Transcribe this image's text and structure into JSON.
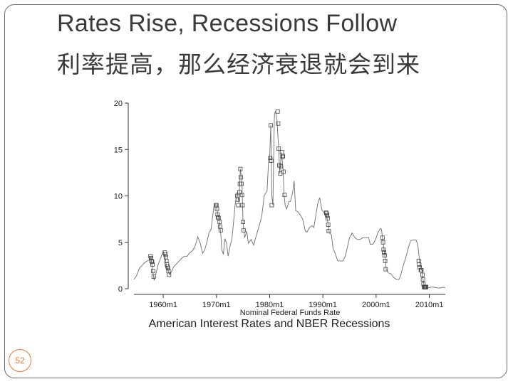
{
  "slide": {
    "title_en": "Rates Rise, Recessions Follow",
    "title_zh": "利率提高，那么经济衰退就会到来",
    "page_number": "52"
  },
  "colors": {
    "border": "#6b6b6b",
    "line": "#6e6e6e",
    "marker": "#444444",
    "badge": "#e07a3a"
  },
  "chart_data": {
    "type": "line",
    "title": "American Interest Rates and NBER Recessions",
    "xlabel": "Nominal Federal Funds Rate",
    "ylabel": "",
    "xlim": [
      1954.5,
      2013.0
    ],
    "ylim": [
      0,
      20
    ],
    "yticks": [
      0,
      5,
      10,
      15,
      20
    ],
    "xticks": [
      {
        "value": 1960,
        "label": "1960m1"
      },
      {
        "value": 1970,
        "label": "1970m1"
      },
      {
        "value": 1980,
        "label": "1980m1"
      },
      {
        "value": 1990,
        "label": "1990m1"
      },
      {
        "value": 2000,
        "label": "2000m1"
      },
      {
        "value": 2010,
        "label": "2010m1"
      }
    ],
    "grid": false,
    "series": [
      {
        "values": [
          [
            1954.5,
            1.0
          ],
          [
            1955.0,
            1.4
          ],
          [
            1955.5,
            2.2
          ],
          [
            1956.0,
            2.5
          ],
          [
            1956.5,
            2.8
          ],
          [
            1957.0,
            3.0
          ],
          [
            1957.4,
            3.1
          ],
          [
            1957.7,
            3.4
          ],
          [
            1958.0,
            2.0
          ],
          [
            1958.3,
            0.9
          ],
          [
            1958.7,
            1.8
          ],
          [
            1959.0,
            2.5
          ],
          [
            1959.5,
            3.3
          ],
          [
            1960.0,
            4.0
          ],
          [
            1960.3,
            3.6
          ],
          [
            1960.6,
            2.5
          ],
          [
            1960.9,
            2.0
          ],
          [
            1961.2,
            1.5
          ],
          [
            1961.6,
            1.9
          ],
          [
            1962.0,
            2.4
          ],
          [
            1962.5,
            2.7
          ],
          [
            1963.0,
            3.0
          ],
          [
            1963.5,
            3.3
          ],
          [
            1964.0,
            3.5
          ],
          [
            1964.5,
            3.5
          ],
          [
            1965.0,
            3.9
          ],
          [
            1965.5,
            4.1
          ],
          [
            1966.0,
            4.6
          ],
          [
            1966.5,
            5.6
          ],
          [
            1967.0,
            4.8
          ],
          [
            1967.4,
            3.8
          ],
          [
            1967.8,
            4.2
          ],
          [
            1968.2,
            5.0
          ],
          [
            1968.6,
            6.0
          ],
          [
            1969.0,
            6.4
          ],
          [
            1969.5,
            8.8
          ],
          [
            1969.9,
            9.1
          ],
          [
            1970.2,
            8.2
          ],
          [
            1970.5,
            7.4
          ],
          [
            1970.8,
            6.0
          ],
          [
            1971.0,
            4.2
          ],
          [
            1971.3,
            3.7
          ],
          [
            1971.6,
            5.4
          ],
          [
            1971.9,
            4.9
          ],
          [
            1972.2,
            3.5
          ],
          [
            1972.6,
            4.7
          ],
          [
            1972.9,
            5.3
          ],
          [
            1973.2,
            7.1
          ],
          [
            1973.5,
            9.0
          ],
          [
            1973.9,
            10.4
          ],
          [
            1974.2,
            9.3
          ],
          [
            1974.5,
            12.9
          ],
          [
            1974.8,
            11.5
          ],
          [
            1975.0,
            7.1
          ],
          [
            1975.3,
            5.5
          ],
          [
            1975.7,
            6.2
          ],
          [
            1976.0,
            4.9
          ],
          [
            1976.5,
            5.3
          ],
          [
            1977.0,
            4.7
          ],
          [
            1977.5,
            5.8
          ],
          [
            1978.0,
            6.7
          ],
          [
            1978.5,
            7.8
          ],
          [
            1979.0,
            10.1
          ],
          [
            1979.5,
            10.5
          ],
          [
            1979.8,
            13.8
          ],
          [
            1980.0,
            14.1
          ],
          [
            1980.2,
            17.6
          ],
          [
            1980.4,
            10.0
          ],
          [
            1980.6,
            9.0
          ],
          [
            1980.8,
            15.9
          ],
          [
            1980.9,
            18.9
          ],
          [
            1981.1,
            19.1
          ],
          [
            1981.4,
            18.0
          ],
          [
            1981.7,
            15.0
          ],
          [
            1981.9,
            12.4
          ],
          [
            1982.2,
            14.7
          ],
          [
            1982.5,
            13.0
          ],
          [
            1982.7,
            10.1
          ],
          [
            1982.9,
            9.0
          ],
          [
            1983.2,
            8.6
          ],
          [
            1983.6,
            9.4
          ],
          [
            1983.9,
            9.4
          ],
          [
            1984.3,
            10.3
          ],
          [
            1984.6,
            11.6
          ],
          [
            1984.9,
            8.4
          ],
          [
            1985.3,
            8.3
          ],
          [
            1985.8,
            7.9
          ],
          [
            1986.2,
            7.5
          ],
          [
            1986.7,
            6.2
          ],
          [
            1987.0,
            6.1
          ],
          [
            1987.5,
            6.6
          ],
          [
            1987.9,
            6.8
          ],
          [
            1988.3,
            6.6
          ],
          [
            1988.7,
            8.0
          ],
          [
            1989.0,
            9.1
          ],
          [
            1989.4,
            9.8
          ],
          [
            1989.8,
            8.5
          ],
          [
            1990.2,
            8.2
          ],
          [
            1990.6,
            8.0
          ],
          [
            1990.9,
            7.3
          ],
          [
            1991.2,
            6.0
          ],
          [
            1991.6,
            5.8
          ],
          [
            1991.9,
            4.4
          ],
          [
            1992.3,
            3.8
          ],
          [
            1992.8,
            3.0
          ],
          [
            1993.3,
            3.0
          ],
          [
            1993.8,
            3.0
          ],
          [
            1994.2,
            3.5
          ],
          [
            1994.6,
            4.5
          ],
          [
            1995.0,
            5.5
          ],
          [
            1995.5,
            6.0
          ],
          [
            1996.0,
            5.5
          ],
          [
            1996.5,
            5.3
          ],
          [
            1997.0,
            5.3
          ],
          [
            1997.5,
            5.5
          ],
          [
            1998.0,
            5.5
          ],
          [
            1998.6,
            5.5
          ],
          [
            1998.9,
            4.8
          ],
          [
            1999.4,
            4.8
          ],
          [
            1999.9,
            5.3
          ],
          [
            2000.3,
            6.0
          ],
          [
            2000.8,
            6.5
          ],
          [
            2001.0,
            6.4
          ],
          [
            2001.3,
            5.0
          ],
          [
            2001.6,
            3.8
          ],
          [
            2001.9,
            2.1
          ],
          [
            2002.3,
            1.7
          ],
          [
            2002.8,
            1.6
          ],
          [
            2003.3,
            1.2
          ],
          [
            2003.8,
            1.0
          ],
          [
            2004.3,
            1.0
          ],
          [
            2004.6,
            1.4
          ],
          [
            2005.0,
            2.3
          ],
          [
            2005.5,
            3.2
          ],
          [
            2006.0,
            4.3
          ],
          [
            2006.5,
            5.2
          ],
          [
            2007.0,
            5.25
          ],
          [
            2007.5,
            5.25
          ],
          [
            2007.8,
            4.8
          ],
          [
            2008.0,
            3.9
          ],
          [
            2008.3,
            2.3
          ],
          [
            2008.6,
            2.0
          ],
          [
            2008.9,
            0.6
          ],
          [
            2009.1,
            0.15
          ],
          [
            2009.5,
            0.16
          ],
          [
            2010.0,
            0.12
          ],
          [
            2010.5,
            0.18
          ],
          [
            2011.0,
            0.15
          ],
          [
            2011.5,
            0.09
          ],
          [
            2012.0,
            0.08
          ],
          [
            2012.5,
            0.15
          ],
          [
            2013.0,
            0.12
          ]
        ]
      }
    ],
    "recession_points": [
      [
        1957.6,
        3.5
      ],
      [
        1957.7,
        3.3
      ],
      [
        1957.8,
        3.0
      ],
      [
        1957.9,
        2.9
      ],
      [
        1958.0,
        2.6
      ],
      [
        1958.1,
        1.9
      ],
      [
        1958.2,
        1.3
      ],
      [
        1960.3,
        3.9
      ],
      [
        1960.4,
        3.7
      ],
      [
        1960.5,
        3.4
      ],
      [
        1960.6,
        3.0
      ],
      [
        1960.7,
        2.6
      ],
      [
        1960.8,
        2.4
      ],
      [
        1960.9,
        2.2
      ],
      [
        1961.0,
        1.9
      ],
      [
        1961.1,
        1.5
      ],
      [
        1969.9,
        9.0
      ],
      [
        1970.0,
        9.0
      ],
      [
        1970.1,
        8.6
      ],
      [
        1970.2,
        8.0
      ],
      [
        1970.3,
        7.7
      ],
      [
        1970.4,
        7.6
      ],
      [
        1970.6,
        7.2
      ],
      [
        1970.7,
        6.7
      ],
      [
        1970.8,
        6.3
      ],
      [
        1973.9,
        10.0
      ],
      [
        1974.0,
        9.6
      ],
      [
        1974.1,
        9.0
      ],
      [
        1974.3,
        10.4
      ],
      [
        1974.4,
        11.3
      ],
      [
        1974.5,
        12.9
      ],
      [
        1974.6,
        12.0
      ],
      [
        1974.7,
        11.3
      ],
      [
        1974.8,
        10.1
      ],
      [
        1974.9,
        9.0
      ],
      [
        1975.0,
        7.2
      ],
      [
        1975.1,
        6.3
      ],
      [
        1980.1,
        14.1
      ],
      [
        1980.2,
        17.6
      ],
      [
        1980.3,
        13.8
      ],
      [
        1980.4,
        9.0
      ],
      [
        1981.5,
        19.1
      ],
      [
        1981.6,
        17.8
      ],
      [
        1981.7,
        15.1
      ],
      [
        1981.8,
        13.3
      ],
      [
        1982.0,
        12.4
      ],
      [
        1982.1,
        13.2
      ],
      [
        1982.3,
        14.7
      ],
      [
        1982.4,
        14.2
      ],
      [
        1982.5,
        14.3
      ],
      [
        1982.6,
        12.6
      ],
      [
        1982.8,
        10.1
      ],
      [
        1990.6,
        8.2
      ],
      [
        1990.7,
        8.1
      ],
      [
        1990.8,
        7.9
      ],
      [
        1990.9,
        7.6
      ],
      [
        1991.0,
        6.9
      ],
      [
        1991.1,
        6.2
      ],
      [
        2001.2,
        5.5
      ],
      [
        2001.3,
        5.0
      ],
      [
        2001.4,
        4.2
      ],
      [
        2001.5,
        3.9
      ],
      [
        2001.6,
        3.6
      ],
      [
        2001.7,
        3.0
      ],
      [
        2001.8,
        2.1
      ],
      [
        2008.0,
        3.0
      ],
      [
        2008.1,
        2.6
      ],
      [
        2008.2,
        2.3
      ],
      [
        2008.4,
        2.0
      ],
      [
        2008.5,
        2.0
      ],
      [
        2008.7,
        1.5
      ],
      [
        2008.8,
        1.0
      ],
      [
        2008.9,
        0.5
      ],
      [
        2009.0,
        0.2
      ],
      [
        2009.1,
        0.15
      ],
      [
        2009.2,
        0.18
      ],
      [
        2009.3,
        0.15
      ],
      [
        2009.4,
        0.2
      ]
    ]
  }
}
